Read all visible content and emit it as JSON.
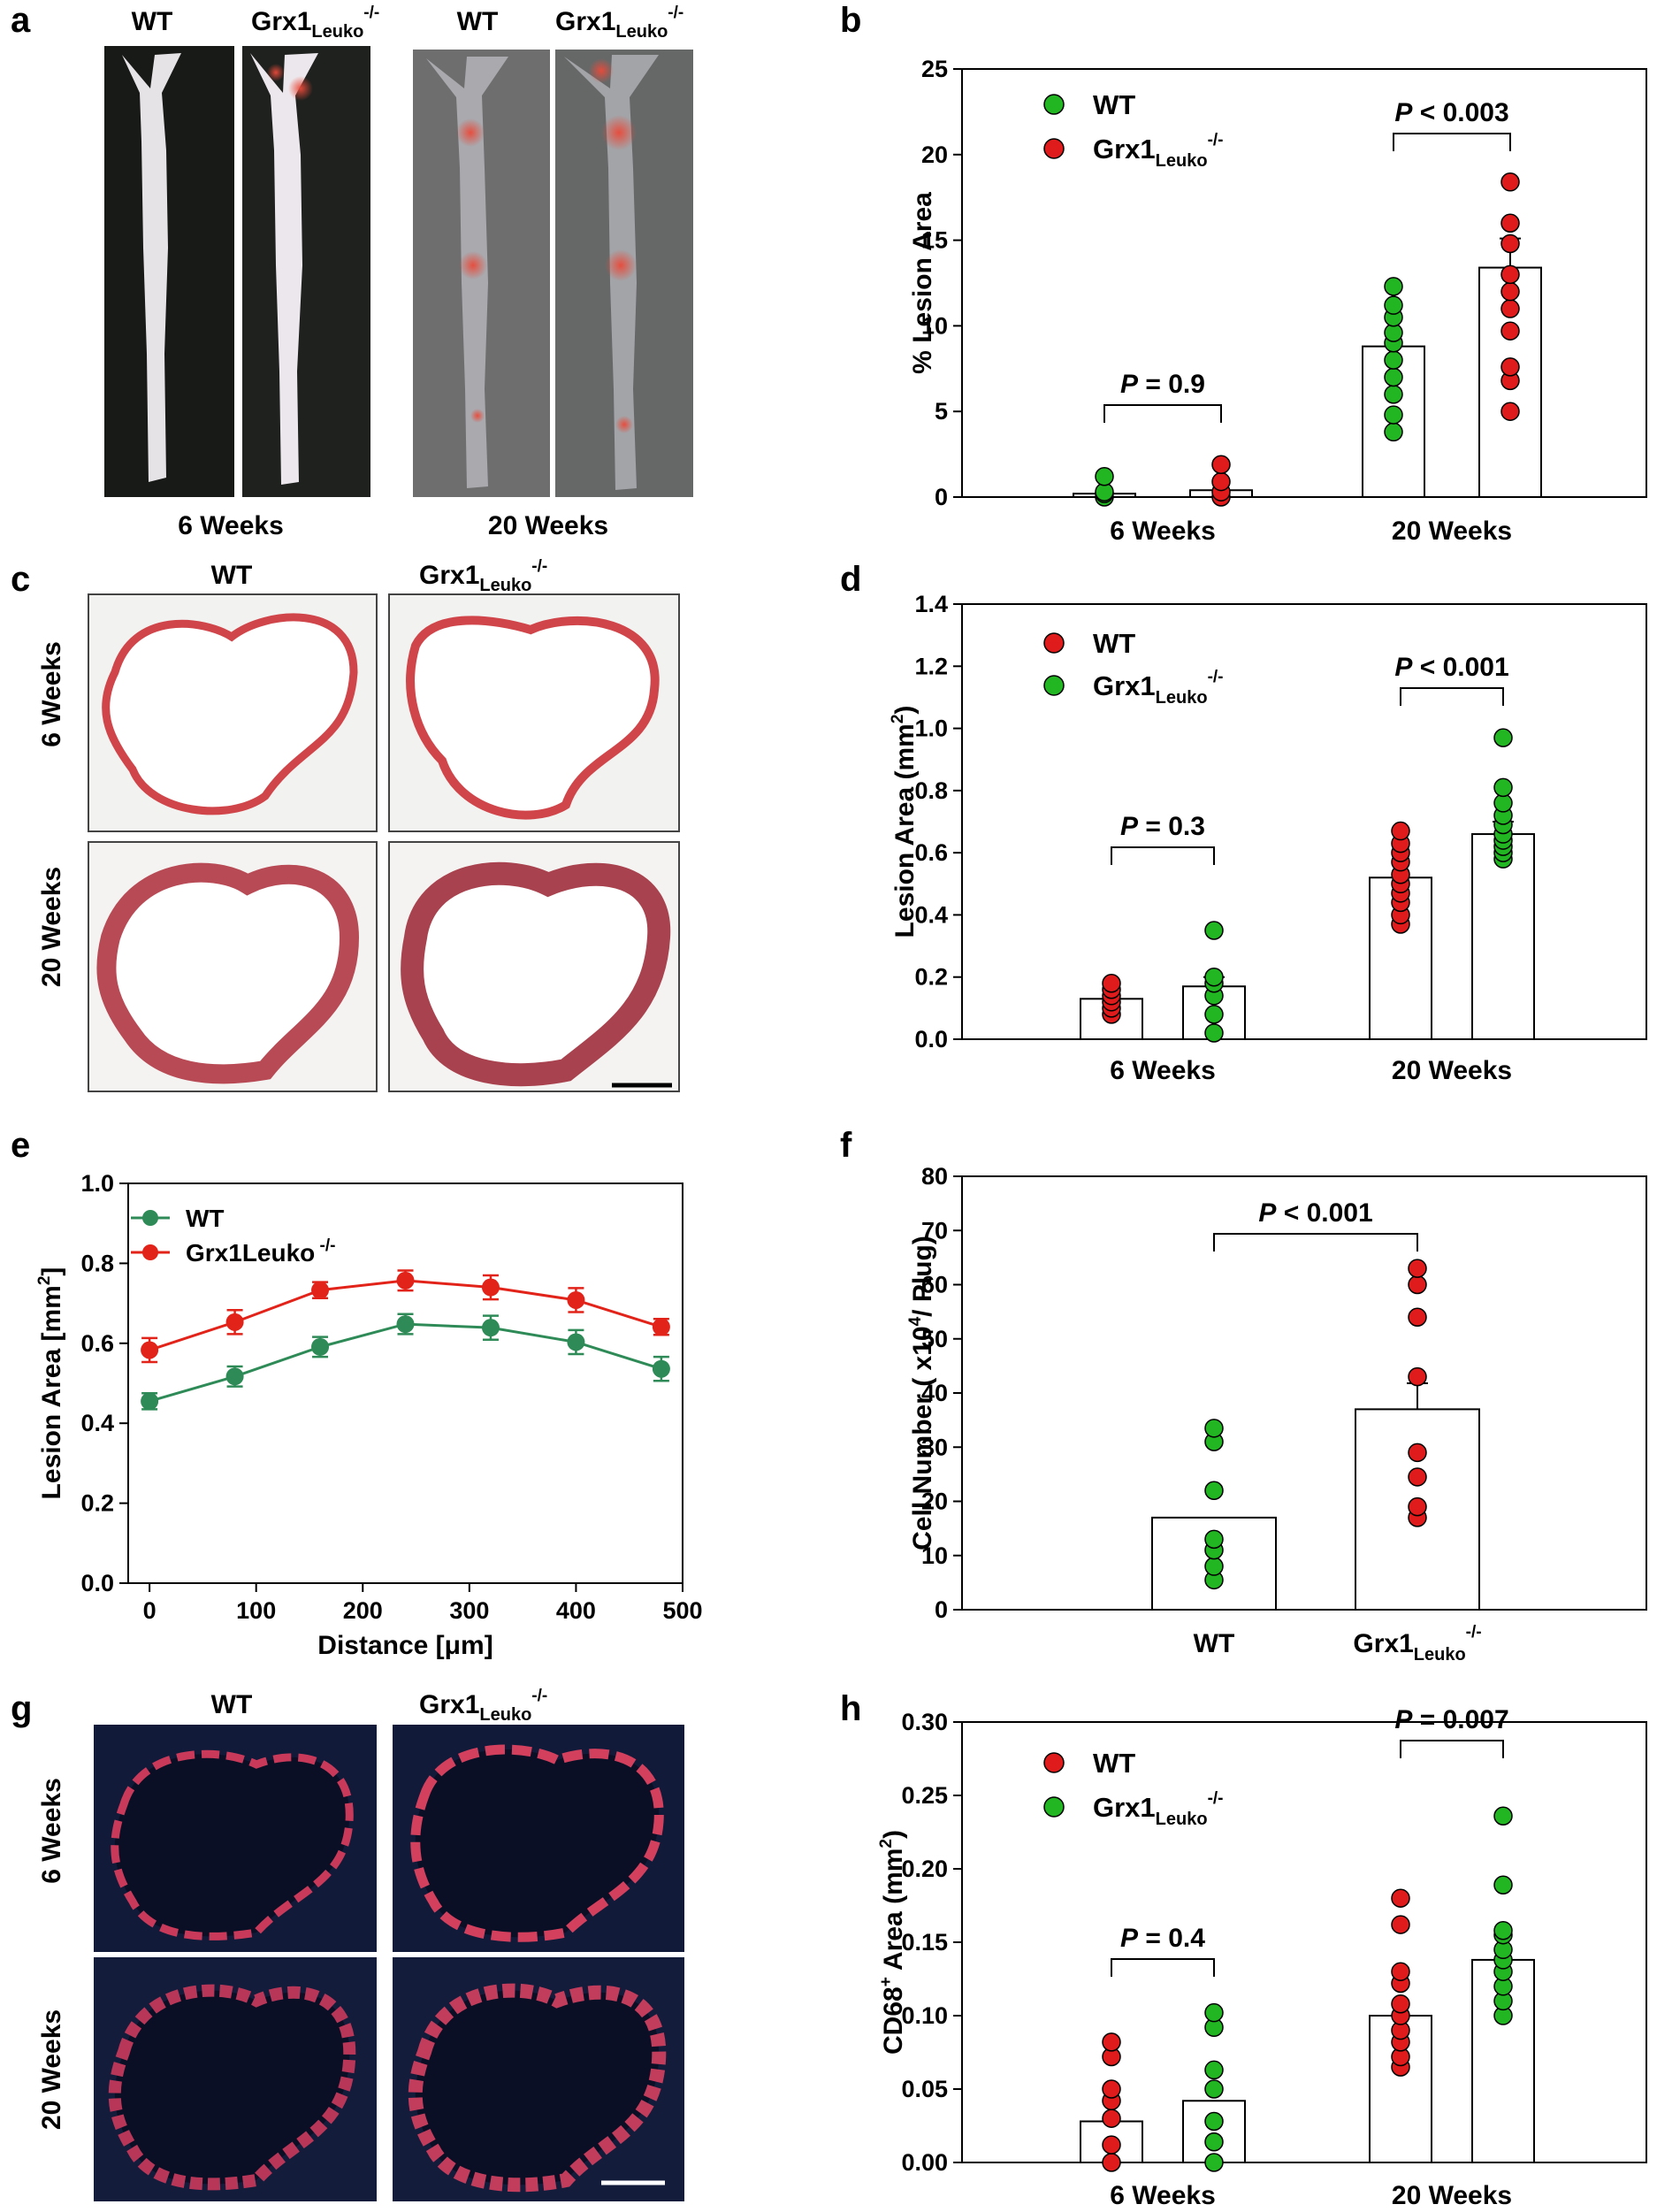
{
  "panel_labels": {
    "a": "a",
    "b": "b",
    "c": "c",
    "d": "d",
    "e": "e",
    "f": "f",
    "g": "g",
    "h": "h"
  },
  "image_panels": {
    "a": {
      "headers": [
        "WT",
        "Grx1",
        "Leuko",
        "-/-",
        "WT",
        "Grx1",
        "Leuko",
        "-/-"
      ],
      "captions": [
        "6 Weeks",
        "20 Weeks"
      ]
    },
    "c": {
      "headers": [
        "WT",
        "Grx1",
        "Leuko",
        "-/-"
      ],
      "row_labels": [
        "6 Weeks",
        "20 Weeks"
      ]
    },
    "g": {
      "headers": [
        "WT",
        "Grx1",
        "Leuko",
        "-/-"
      ],
      "row_labels": [
        "6 Weeks",
        "20 Weeks"
      ]
    }
  },
  "colors": {
    "wt_green": "#22b722",
    "ko_red": "#e01b1b",
    "line_green": "#2e8b57",
    "line_red": "#e2231a"
  },
  "chart_data": [
    {
      "id": "b",
      "type": "bar",
      "title": "",
      "xlabel": "",
      "ylabel": "% Lesion Area",
      "ylim": [
        0,
        25
      ],
      "yticks": [
        "0",
        "5",
        "10",
        "15",
        "20",
        "25"
      ],
      "categories": [
        "6 Weeks",
        "20 Weeks"
      ],
      "legend": {
        "placement": "top-left",
        "items": [
          {
            "name": "WT",
            "sub": "",
            "sup": "",
            "color": "#22b722"
          },
          {
            "name": "Grx1",
            "sub": "Leuko",
            "sup": "-/-",
            "color": "#e01b1b"
          }
        ]
      },
      "series": [
        {
          "name": "WT",
          "color": "#22b722",
          "means": [
            0.2,
            8.8
          ],
          "sem": [
            0,
            0
          ],
          "points": [
            [
              0,
              0.2,
              0.3,
              1.2
            ],
            [
              3.8,
              4.8,
              6.0,
              7.0,
              8.0,
              9.0,
              9.6,
              10.5,
              11.2,
              12.3
            ]
          ]
        },
        {
          "name": "Grx1Leuko-/-",
          "color": "#e01b1b",
          "means": [
            0.4,
            13.4
          ],
          "sem": [
            0,
            1.7
          ],
          "points": [
            [
              0,
              0.3,
              0.9,
              1.9
            ],
            [
              5.0,
              6.8,
              7.6,
              9.7,
              11.0,
              12.0,
              13.0,
              14.8,
              16.0,
              18.4
            ]
          ]
        }
      ],
      "comparisons": [
        {
          "label": "P = 0.9",
          "p_italic": "P",
          "rest": " = 0.9"
        },
        {
          "label": "P < 0.003",
          "p_italic": "P",
          "rest": " < 0.003"
        }
      ]
    },
    {
      "id": "d",
      "type": "bar",
      "title": "",
      "xlabel": "",
      "ylabel": "Lesion Area (mm",
      "ylabel_sup": "2",
      "ylabel_end": ")",
      "ylim": [
        0,
        1.4
      ],
      "yticks": [
        "0.0",
        "0.2",
        "0.4",
        "0.6",
        "0.8",
        "1.0",
        "1.2",
        "1.4"
      ],
      "categories": [
        "6 Weeks",
        "20 Weeks"
      ],
      "legend": {
        "placement": "top-left",
        "items": [
          {
            "name": "WT",
            "sub": "",
            "sup": "",
            "color": "#e01b1b"
          },
          {
            "name": "Grx1",
            "sub": "Leuko",
            "sup": "-/-",
            "color": "#22b722"
          }
        ]
      },
      "series": [
        {
          "name": "WT",
          "color": "#e01b1b",
          "means": [
            0.13,
            0.52
          ],
          "sem": [
            0,
            0
          ],
          "points": [
            [
              0.08,
              0.1,
              0.12,
              0.14,
              0.16,
              0.18
            ],
            [
              0.37,
              0.4,
              0.44,
              0.47,
              0.5,
              0.53,
              0.57,
              0.6,
              0.63,
              0.67
            ]
          ]
        },
        {
          "name": "Grx1Leuko-/-",
          "color": "#22b722",
          "means": [
            0.17,
            0.66
          ],
          "sem": [
            0.03,
            0.04
          ],
          "points": [
            [
              0.02,
              0.08,
              0.14,
              0.18,
              0.2,
              0.35
            ],
            [
              0.58,
              0.6,
              0.62,
              0.64,
              0.66,
              0.69,
              0.72,
              0.76,
              0.81,
              0.97
            ]
          ]
        }
      ],
      "comparisons": [
        {
          "label": "P = 0.3",
          "p_italic": "P",
          "rest": " = 0.3"
        },
        {
          "label": "P < 0.001",
          "p_italic": "P",
          "rest": " < 0.001"
        }
      ]
    },
    {
      "id": "e",
      "type": "line",
      "title": "",
      "xlabel": "Distance [μm]",
      "ylabel": "Lesion Area [mm",
      "ylabel_sup": "2",
      "ylabel_end": "]",
      "xlim": [
        -20,
        500
      ],
      "ylim": [
        0,
        1.0
      ],
      "xticks": [
        "0",
        "100",
        "200",
        "300",
        "400",
        "500"
      ],
      "yticks": [
        "0.0",
        "0.2",
        "0.4",
        "0.6",
        "0.8",
        "1.0"
      ],
      "x": [
        0,
        80,
        160,
        240,
        320,
        400,
        480
      ],
      "legend": {
        "placement": "top-left",
        "items": [
          {
            "name": "WT",
            "sub": "",
            "sup": "",
            "color": "#2e8b57"
          },
          {
            "name": "Grx1Leuko",
            "sub": "",
            "sup": "-/-",
            "color": "#e2231a"
          }
        ]
      },
      "series": [
        {
          "name": "WT",
          "color": "#2e8b57",
          "values": [
            0.455,
            0.517,
            0.591,
            0.648,
            0.639,
            0.603,
            0.536
          ],
          "err": [
            0.02,
            0.025,
            0.025,
            0.025,
            0.03,
            0.03,
            0.03
          ]
        },
        {
          "name": "Grx1Leuko -/-",
          "color": "#e2231a",
          "values": [
            0.583,
            0.653,
            0.733,
            0.757,
            0.74,
            0.708,
            0.641
          ],
          "err": [
            0.03,
            0.03,
            0.02,
            0.025,
            0.03,
            0.03,
            0.02
          ]
        }
      ]
    },
    {
      "id": "f",
      "type": "bar",
      "title": "",
      "xlabel": "",
      "ylabel": "Cell Number ( x10",
      "ylabel_sup": "4",
      "ylabel_end": "/ Plug)",
      "ylim": [
        0,
        80
      ],
      "yticks": [
        "0",
        "10",
        "20",
        "30",
        "40",
        "50",
        "60",
        "70",
        "80"
      ],
      "categories": [
        "WT",
        "Grx1"
      ],
      "category_ko": {
        "index": 1,
        "sub": "Leuko",
        "sup": "-/-"
      },
      "series": [
        {
          "name": "WT",
          "color": "#22b722",
          "means": [
            17
          ],
          "sem": [
            0
          ],
          "points": [
            [
              5.5,
              8,
              11,
              13,
              22,
              31,
              33.5
            ]
          ]
        },
        {
          "name": "Grx1Leuko-/-",
          "color": "#e01b1b",
          "means": [
            37
          ],
          "sem": [
            4.8
          ],
          "points": [
            [
              17,
              19,
              24.5,
              29,
              43,
              54,
              60,
              63
            ]
          ]
        }
      ],
      "group_pos": [
        0,
        1
      ],
      "comparisons": [
        {
          "label": "P < 0.001",
          "p_italic": "P",
          "rest": " < 0.001"
        }
      ]
    },
    {
      "id": "h",
      "type": "bar",
      "title": "",
      "xlabel": "",
      "ylabel": "CD68",
      "ylabel_sup_a": "+",
      "ylabel_mid": " Area (mm",
      "ylabel_sup": "2",
      "ylabel_end": ")",
      "ylim": [
        0,
        0.3
      ],
      "yticks": [
        "0.00",
        "0.05",
        "0.10",
        "0.15",
        "0.20",
        "0.25",
        "0.30"
      ],
      "categories": [
        "6 Weeks",
        "20 Weeks"
      ],
      "legend": {
        "placement": "top-left",
        "items": [
          {
            "name": "WT",
            "sub": "",
            "sup": "",
            "color": "#e01b1b"
          },
          {
            "name": "Grx1",
            "sub": "Leuko",
            "sup": "-/-",
            "color": "#22b722"
          }
        ]
      },
      "series": [
        {
          "name": "WT",
          "color": "#e01b1b",
          "means": [
            0.028,
            0.1
          ],
          "sem": [
            0,
            0
          ],
          "points": [
            [
              0.0,
              0.012,
              0.03,
              0.042,
              0.05,
              0.072,
              0.082
            ],
            [
              0.065,
              0.072,
              0.082,
              0.09,
              0.1,
              0.108,
              0.122,
              0.13,
              0.162,
              0.18
            ]
          ]
        },
        {
          "name": "Grx1Leuko-/-",
          "color": "#22b722",
          "means": [
            0.042,
            0.138
          ],
          "sem": [
            0,
            0
          ],
          "points": [
            [
              0.0,
              0.014,
              0.028,
              0.05,
              0.063,
              0.092,
              0.102
            ],
            [
              0.1,
              0.11,
              0.12,
              0.13,
              0.138,
              0.145,
              0.155,
              0.158,
              0.189,
              0.236
            ]
          ]
        }
      ],
      "comparisons": [
        {
          "label": "P = 0.4",
          "p_italic": "P",
          "rest": " = 0.4"
        },
        {
          "label": "P = 0.007",
          "p_italic": "P",
          "rest": " = 0.007"
        }
      ]
    }
  ]
}
